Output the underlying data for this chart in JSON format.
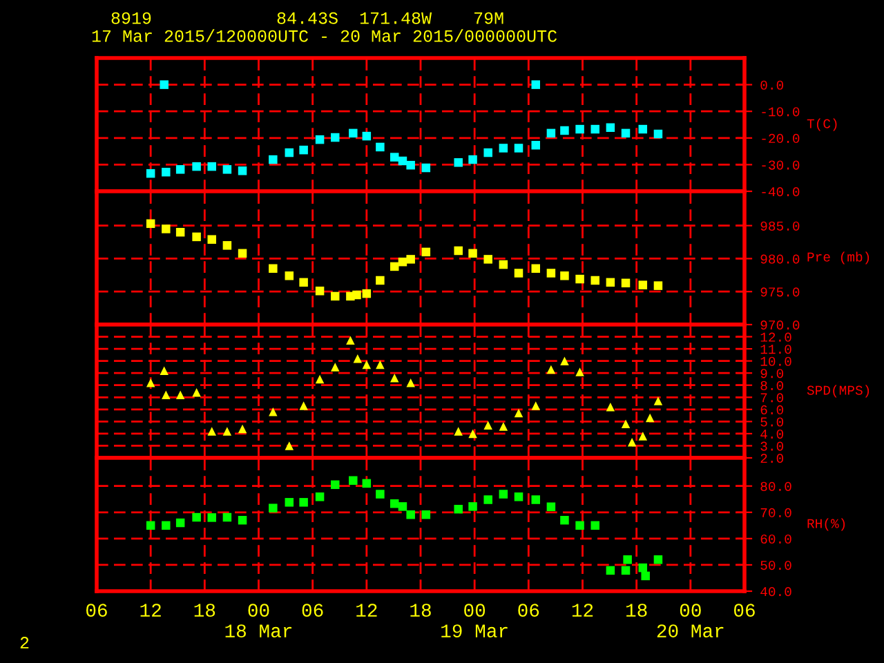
{
  "chart_data": [
    {
      "type": "scatter",
      "title": "8919            84.43S  171.48W    79M",
      "subtitle": "17 Mar 2015/120000UTC - 20 Mar 2015/000000UTC",
      "ylabel": "T(C)",
      "marker": "square",
      "grid": true,
      "tick_labels": "y",
      "xlim": [
        "2015-03-17T06:00",
        "2015-03-20T06:00"
      ],
      "xticks": [
        {
          "value": "2015-03-17T06:00",
          "label": null
        },
        {
          "value": "2015-03-17T12:00",
          "label": null
        },
        {
          "value": "2015-03-17T18:00",
          "label": null
        },
        {
          "value": "2015-03-18T00:00",
          "label": null
        },
        {
          "value": "2015-03-18T06:00",
          "label": null
        },
        {
          "value": "2015-03-18T12:00",
          "label": null
        },
        {
          "value": "2015-03-18T18:00",
          "label": null
        },
        {
          "value": "2015-03-19T00:00",
          "label": null
        },
        {
          "value": "2015-03-19T06:00",
          "label": null
        },
        {
          "value": "2015-03-19T12:00",
          "label": null
        },
        {
          "value": "2015-03-19T18:00",
          "label": null
        },
        {
          "value": "2015-03-20T00:00",
          "label": null
        },
        {
          "value": "2015-03-20T06:00",
          "label": null
        }
      ],
      "ylim": [
        -40,
        10
      ],
      "yticks": [
        {
          "value": 0,
          "label": "0.0"
        },
        {
          "value": -10,
          "label": "-10.0"
        },
        {
          "value": -20,
          "label": "-20.0"
        },
        {
          "value": -30,
          "label": "-30.0"
        },
        {
          "value": -40,
          "label": "-40.0"
        }
      ],
      "series": [
        {
          "color": "#00ffff",
          "x": [
            "2015-03-17T12:00",
            "2015-03-17T13:30",
            "2015-03-17T13:42",
            "2015-03-17T15:18",
            "2015-03-17T17:06",
            "2015-03-17T18:48",
            "2015-03-17T20:30",
            "2015-03-17T22:12",
            "2015-03-18T01:36",
            "2015-03-18T03:24",
            "2015-03-18T05:00",
            "2015-03-18T06:48",
            "2015-03-18T08:30",
            "2015-03-18T10:30",
            "2015-03-18T12:00",
            "2015-03-18T13:30",
            "2015-03-18T15:06",
            "2015-03-18T16:00",
            "2015-03-18T16:54",
            "2015-03-18T18:36",
            "2015-03-18T22:12",
            "2015-03-18T23:48",
            "2015-03-19T01:30",
            "2015-03-19T03:12",
            "2015-03-19T04:54",
            "2015-03-19T06:48",
            "2015-03-19T06:48",
            "2015-03-19T08:30",
            "2015-03-19T10:00",
            "2015-03-19T11:42",
            "2015-03-19T13:24",
            "2015-03-19T15:06",
            "2015-03-19T16:48",
            "2015-03-19T18:42",
            "2015-03-19T20:24"
          ],
          "values": [
            -33.3,
            0,
            -32.8,
            -31.8,
            -30.7,
            -30.7,
            -31.8,
            -32.3,
            -28.1,
            -25.5,
            -24.5,
            -20.6,
            -19.8,
            -18.2,
            -19.3,
            -23.4,
            -27.2,
            -28.6,
            -30.2,
            -31.2,
            -29.2,
            -28.1,
            -25.5,
            -23.8,
            -23.8,
            0,
            -22.7,
            -18.2,
            -17.2,
            -16.7,
            -16.7,
            -16.1,
            -18.2,
            -16.7,
            -18.5
          ]
        }
      ]
    },
    {
      "type": "scatter",
      "ylabel": "Pre (mb)",
      "marker": "square",
      "grid": true,
      "tick_labels": "y",
      "xlim": [
        "2015-03-17T06:00",
        "2015-03-20T06:00"
      ],
      "xticks": [
        {
          "value": "2015-03-17T06:00",
          "label": null
        },
        {
          "value": "2015-03-17T12:00",
          "label": null
        },
        {
          "value": "2015-03-17T18:00",
          "label": null
        },
        {
          "value": "2015-03-18T00:00",
          "label": null
        },
        {
          "value": "2015-03-18T06:00",
          "label": null
        },
        {
          "value": "2015-03-18T12:00",
          "label": null
        },
        {
          "value": "2015-03-18T18:00",
          "label": null
        },
        {
          "value": "2015-03-19T00:00",
          "label": null
        },
        {
          "value": "2015-03-19T06:00",
          "label": null
        },
        {
          "value": "2015-03-19T12:00",
          "label": null
        },
        {
          "value": "2015-03-19T18:00",
          "label": null
        },
        {
          "value": "2015-03-20T00:00",
          "label": null
        },
        {
          "value": "2015-03-20T06:00",
          "label": null
        }
      ],
      "ylim": [
        970,
        990.2
      ],
      "yticks": [
        {
          "value": 985,
          "label": "985.0"
        },
        {
          "value": 980,
          "label": "980.0"
        },
        {
          "value": 975,
          "label": "975.0"
        },
        {
          "value": 970,
          "label": "970.0"
        }
      ],
      "series": [
        {
          "color": "#ffff00",
          "x": [
            "2015-03-17T12:00",
            "2015-03-17T13:42",
            "2015-03-17T15:18",
            "2015-03-17T17:06",
            "2015-03-17T18:48",
            "2015-03-17T20:30",
            "2015-03-17T22:12",
            "2015-03-18T01:36",
            "2015-03-18T03:24",
            "2015-03-18T05:00",
            "2015-03-18T06:48",
            "2015-03-18T08:30",
            "2015-03-18T10:12",
            "2015-03-18T10:54",
            "2015-03-18T12:00",
            "2015-03-18T13:30",
            "2015-03-18T15:06",
            "2015-03-18T16:00",
            "2015-03-18T16:54",
            "2015-03-18T18:36",
            "2015-03-18T22:12",
            "2015-03-18T23:48",
            "2015-03-19T01:30",
            "2015-03-19T03:12",
            "2015-03-19T04:54",
            "2015-03-19T06:48",
            "2015-03-19T08:30",
            "2015-03-19T10:00",
            "2015-03-19T11:42",
            "2015-03-19T13:24",
            "2015-03-19T15:06",
            "2015-03-19T16:48",
            "2015-03-19T18:42",
            "2015-03-19T20:24"
          ],
          "values": [
            985.3,
            984.5,
            984.0,
            983.3,
            982.9,
            982.0,
            980.8,
            978.5,
            977.4,
            976.4,
            975.1,
            974.3,
            974.3,
            974.5,
            974.7,
            976.7,
            978.8,
            979.5,
            979.9,
            981.0,
            981.2,
            980.8,
            979.9,
            979.1,
            977.8,
            978.5,
            977.8,
            977.4,
            976.9,
            976.7,
            976.4,
            976.3,
            976.0,
            975.9
          ]
        }
      ]
    },
    {
      "type": "scatter",
      "ylabel": "SPD(MPS)",
      "marker": "triangle",
      "grid": true,
      "tick_labels": "y",
      "xlim": [
        "2015-03-17T06:00",
        "2015-03-20T06:00"
      ],
      "xticks": [
        {
          "value": "2015-03-17T06:00",
          "label": null
        },
        {
          "value": "2015-03-17T12:00",
          "label": null
        },
        {
          "value": "2015-03-17T18:00",
          "label": null
        },
        {
          "value": "2015-03-18T00:00",
          "label": null
        },
        {
          "value": "2015-03-18T06:00",
          "label": null
        },
        {
          "value": "2015-03-18T12:00",
          "label": null
        },
        {
          "value": "2015-03-18T18:00",
          "label": null
        },
        {
          "value": "2015-03-19T00:00",
          "label": null
        },
        {
          "value": "2015-03-19T06:00",
          "label": null
        },
        {
          "value": "2015-03-19T12:00",
          "label": null
        },
        {
          "value": "2015-03-19T18:00",
          "label": null
        },
        {
          "value": "2015-03-20T00:00",
          "label": null
        },
        {
          "value": "2015-03-20T06:00",
          "label": null
        }
      ],
      "ylim": [
        2,
        13
      ],
      "yticks": [
        {
          "value": 12,
          "label": "12.0"
        },
        {
          "value": 11,
          "label": "11.0"
        },
        {
          "value": 10,
          "label": "10.0"
        },
        {
          "value": 9,
          "label": "9.0"
        },
        {
          "value": 8,
          "label": "8.0"
        },
        {
          "value": 7,
          "label": "7.0"
        },
        {
          "value": 6,
          "label": "6.0"
        },
        {
          "value": 5,
          "label": "5.0"
        },
        {
          "value": 4,
          "label": "4.0"
        },
        {
          "value": 3,
          "label": "3.0"
        },
        {
          "value": 2,
          "label": "2.0"
        }
      ],
      "series": [
        {
          "color": "#ffff00",
          "x": [
            "2015-03-17T12:00",
            "2015-03-17T13:30",
            "2015-03-17T13:42",
            "2015-03-17T15:18",
            "2015-03-17T17:06",
            "2015-03-17T18:48",
            "2015-03-17T20:30",
            "2015-03-17T22:12",
            "2015-03-18T01:36",
            "2015-03-18T03:24",
            "2015-03-18T05:00",
            "2015-03-18T06:48",
            "2015-03-18T08:30",
            "2015-03-18T10:12",
            "2015-03-18T11:00",
            "2015-03-18T12:00",
            "2015-03-18T13:30",
            "2015-03-18T15:06",
            "2015-03-18T16:54",
            "2015-03-18T22:12",
            "2015-03-18T23:48",
            "2015-03-19T01:30",
            "2015-03-19T03:12",
            "2015-03-19T04:54",
            "2015-03-19T06:48",
            "2015-03-19T08:30",
            "2015-03-19T10:00",
            "2015-03-19T11:42",
            "2015-03-19T15:06",
            "2015-03-19T16:48",
            "2015-03-19T17:30",
            "2015-03-19T18:42",
            "2015-03-19T19:30",
            "2015-03-19T20:24"
          ],
          "values": [
            8.2,
            9.2,
            7.2,
            7.2,
            7.4,
            4.2,
            4.2,
            4.4,
            5.8,
            3.0,
            6.3,
            8.5,
            9.5,
            11.7,
            10.2,
            9.7,
            9.7,
            8.6,
            8.2,
            4.2,
            4.0,
            4.7,
            4.6,
            5.7,
            6.3,
            9.3,
            10.0,
            9.1,
            6.2,
            4.8,
            3.3,
            3.8,
            5.3,
            6.7
          ]
        }
      ]
    },
    {
      "type": "scatter",
      "ylabel": "RH(%)",
      "marker": "square",
      "grid": true,
      "annotations": [
        "2"
      ],
      "xlim": [
        "2015-03-17T06:00",
        "2015-03-20T06:00"
      ],
      "xticks": [
        {
          "value": "2015-03-17T06:00",
          "label": "06"
        },
        {
          "value": "2015-03-17T12:00",
          "label": "12"
        },
        {
          "value": "2015-03-17T18:00",
          "label": "18"
        },
        {
          "value": "2015-03-18T00:00",
          "label": "00\n18 Mar"
        },
        {
          "value": "2015-03-18T06:00",
          "label": "06"
        },
        {
          "value": "2015-03-18T12:00",
          "label": "12"
        },
        {
          "value": "2015-03-18T18:00",
          "label": "18"
        },
        {
          "value": "2015-03-19T00:00",
          "label": "00\n19 Mar"
        },
        {
          "value": "2015-03-19T06:00",
          "label": "06"
        },
        {
          "value": "2015-03-19T12:00",
          "label": "12"
        },
        {
          "value": "2015-03-19T18:00",
          "label": "18"
        },
        {
          "value": "2015-03-20T00:00",
          "label": "00\n20 Mar"
        },
        {
          "value": "2015-03-20T06:00",
          "label": "06"
        }
      ],
      "ylim": [
        40,
        90.7
      ],
      "yticks": [
        {
          "value": 80,
          "label": "80.0"
        },
        {
          "value": 70,
          "label": "70.0"
        },
        {
          "value": 60,
          "label": "60.0"
        },
        {
          "value": 50,
          "label": "50.0"
        },
        {
          "value": 40,
          "label": "40.0"
        }
      ],
      "series": [
        {
          "color": "#00ff00",
          "x": [
            "2015-03-17T12:00",
            "2015-03-17T13:42",
            "2015-03-17T15:18",
            "2015-03-17T17:06",
            "2015-03-17T18:48",
            "2015-03-17T20:30",
            "2015-03-17T22:12",
            "2015-03-18T01:36",
            "2015-03-18T03:24",
            "2015-03-18T05:00",
            "2015-03-18T06:48",
            "2015-03-18T08:30",
            "2015-03-18T10:30",
            "2015-03-18T12:00",
            "2015-03-18T13:30",
            "2015-03-18T15:06",
            "2015-03-18T16:00",
            "2015-03-18T16:54",
            "2015-03-18T18:36",
            "2015-03-18T22:12",
            "2015-03-18T23:48",
            "2015-03-19T01:30",
            "2015-03-19T03:12",
            "2015-03-19T04:54",
            "2015-03-19T06:48",
            "2015-03-19T08:30",
            "2015-03-19T10:00",
            "2015-03-19T11:42",
            "2015-03-19T13:24",
            "2015-03-19T15:06",
            "2015-03-19T16:48",
            "2015-03-19T17:00",
            "2015-03-19T18:42",
            "2015-03-19T19:00",
            "2015-03-19T20:12",
            "2015-03-19T20:24"
          ],
          "values": [
            65.0,
            65.0,
            66.0,
            68.1,
            68.0,
            68.1,
            67.0,
            71.6,
            73.8,
            73.8,
            75.9,
            80.5,
            82.1,
            81.0,
            76.9,
            73.3,
            72.2,
            69.1,
            69.1,
            71.2,
            72.2,
            74.8,
            76.9,
            75.9,
            74.8,
            72.1,
            67.0,
            65.0,
            65.0,
            47.9,
            47.9,
            52.0,
            48.9,
            45.8,
            null,
            52.0
          ]
        }
      ]
    }
  ]
}
